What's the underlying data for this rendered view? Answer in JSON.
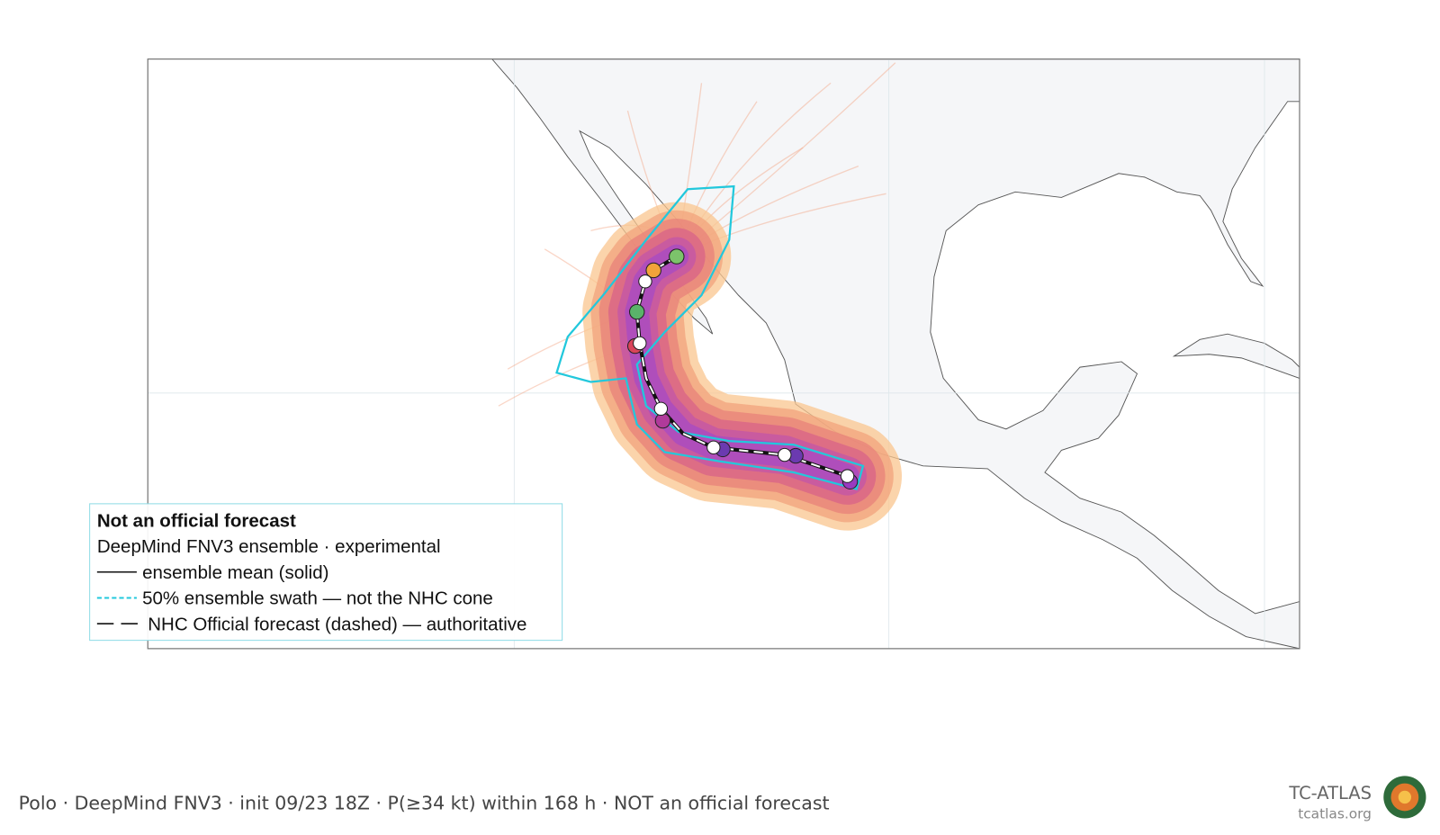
{
  "legend": {
    "title": "Not an official forecast",
    "subtitle": "DeepMind FNV3 ensemble · experimental",
    "items": [
      "ensemble mean (solid)",
      "50% ensemble swath — not the NHC cone",
      "NHC Official forecast (dashed) — authoritative"
    ]
  },
  "footer": {
    "caption": "Polo · DeepMind FNV3 · init 09/23 18Z · P(≥34 kt) within 168 h · NOT an official forecast",
    "brand": "TC-ATLAS",
    "site": "tcatlas.org"
  }
}
